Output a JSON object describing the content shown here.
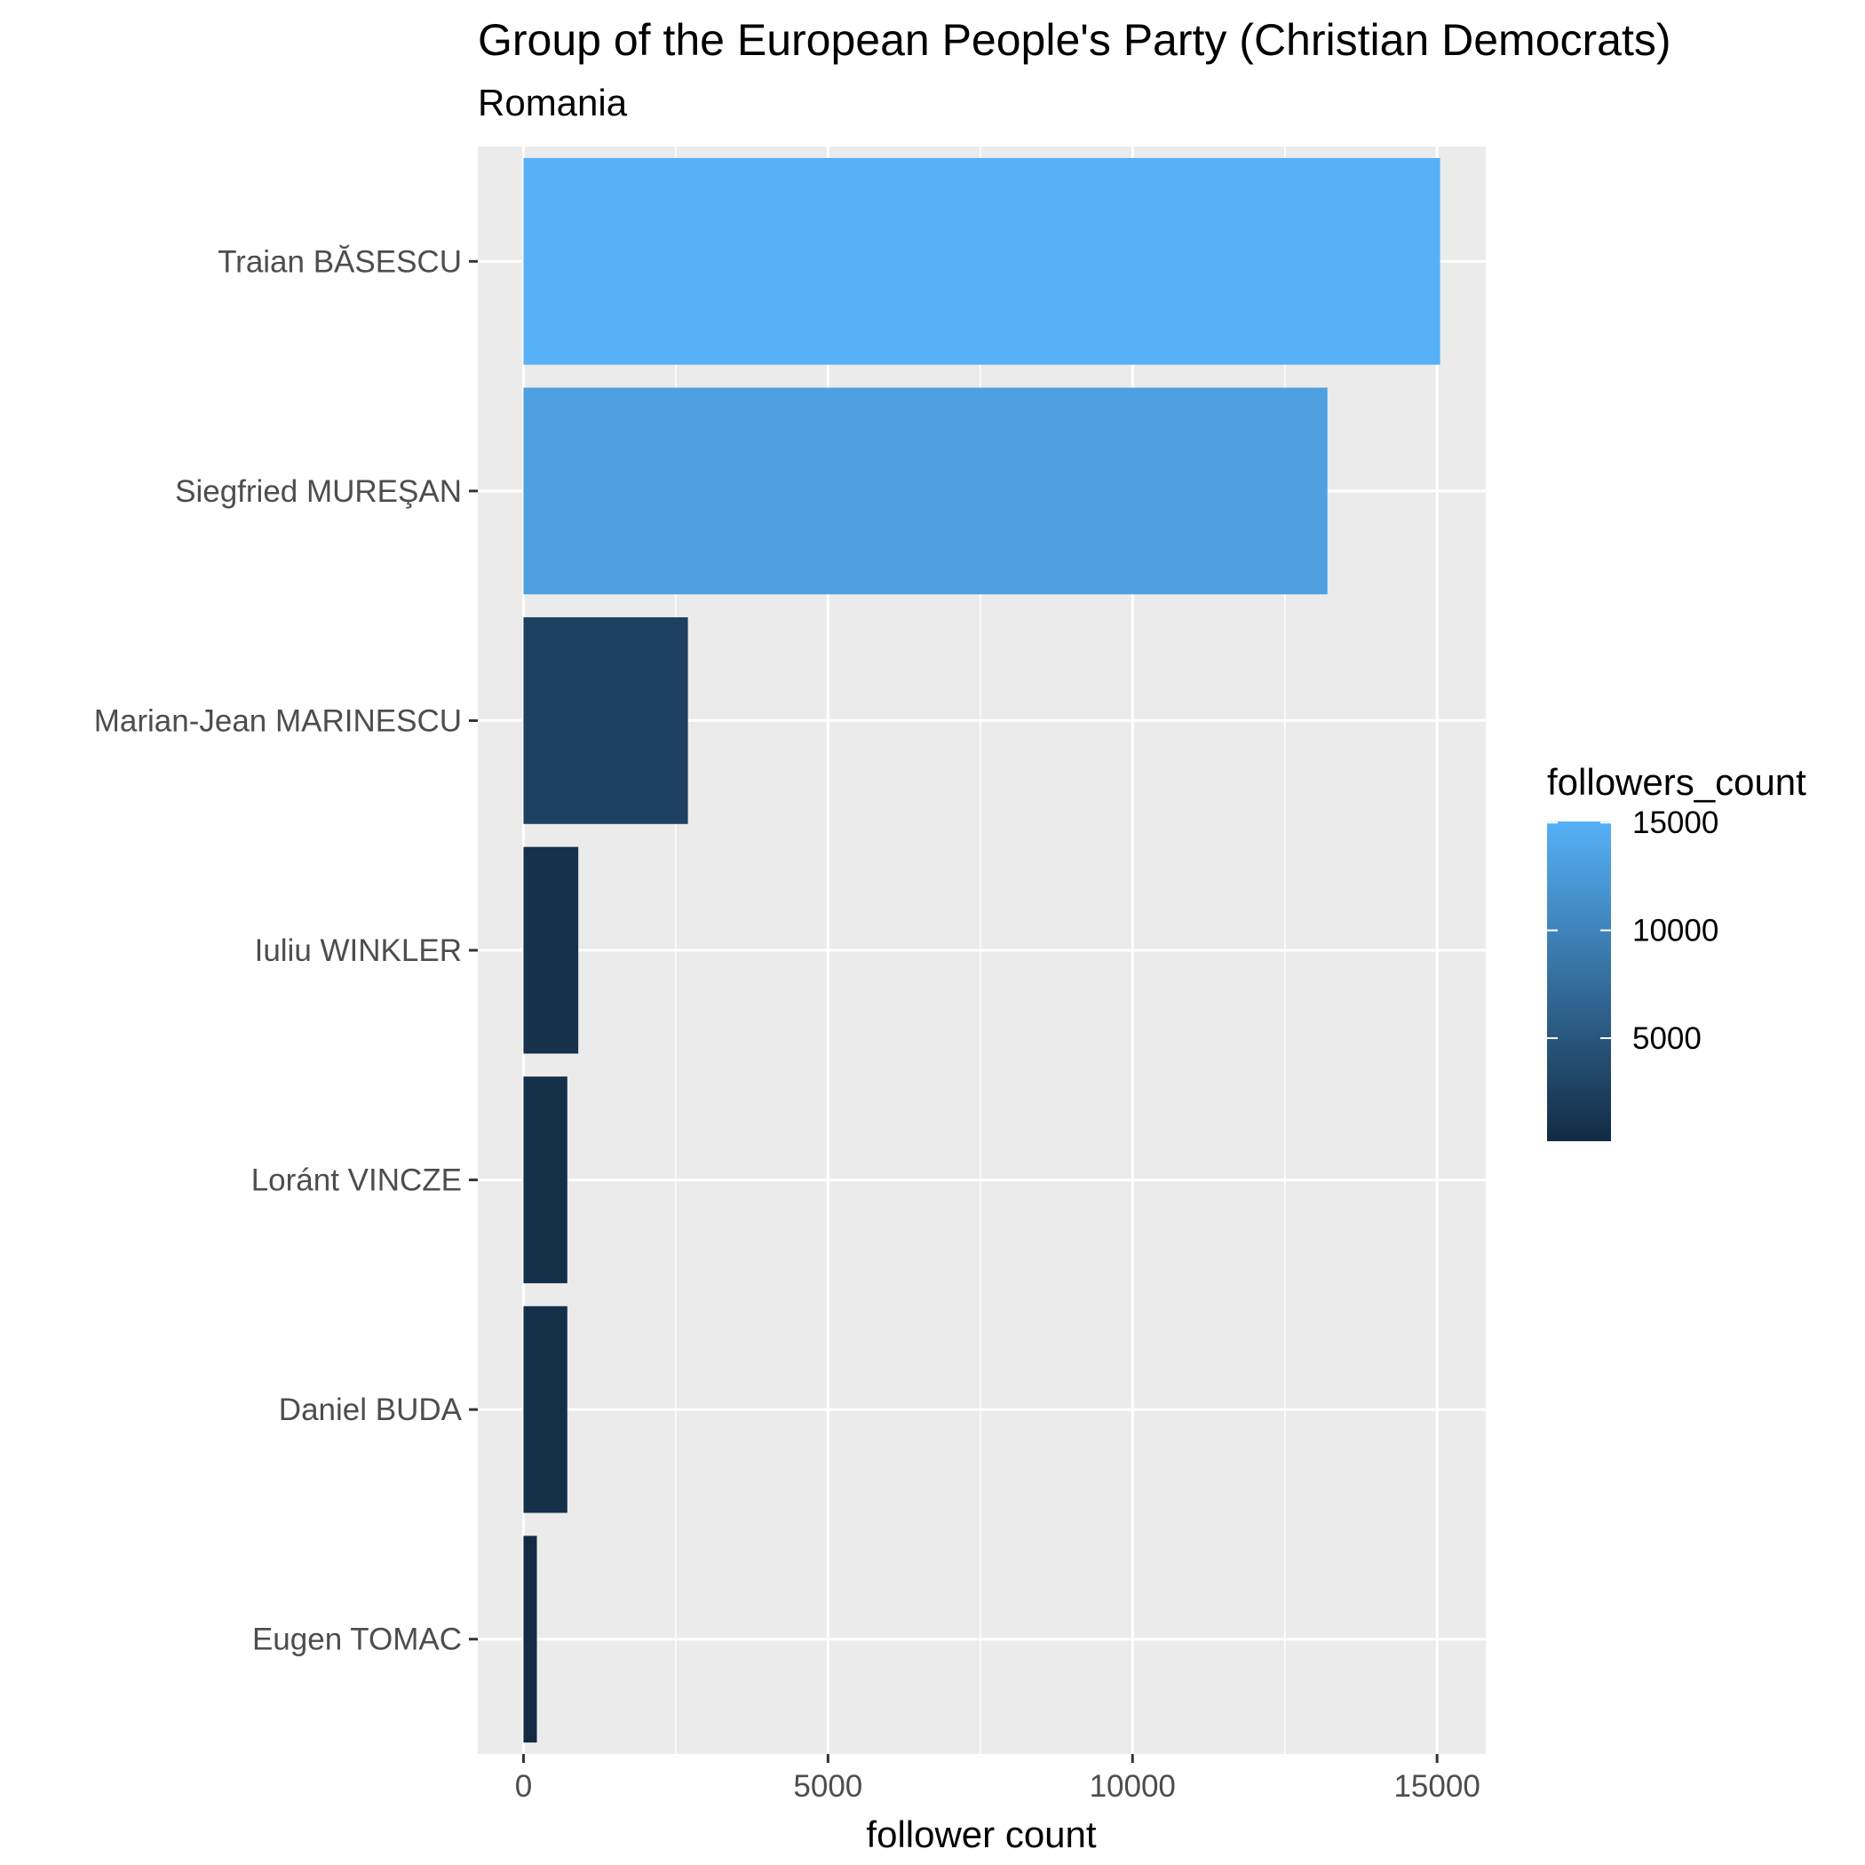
{
  "chart_data": {
    "type": "bar",
    "orientation": "horizontal",
    "title": "Group of the European People's Party (Christian Democrats)",
    "subtitle": "Romania",
    "xlabel": "follower count",
    "ylabel": "",
    "categories": [
      "Traian BĂSESCU",
      "Siegfried MUREŞAN",
      "Marian-Jean MARINESCU",
      "Iuliu WINKLER",
      "Loránt VINCZE",
      "Daniel BUDA",
      "Eugen TOMAC"
    ],
    "values": [
      15050,
      13200,
      2700,
      900,
      720,
      720,
      220
    ],
    "xlim": [
      -750,
      15800
    ],
    "xticks": [
      0,
      5000,
      10000,
      15000
    ],
    "xtick_labels": [
      "0",
      "5000",
      "10000",
      "15000"
    ],
    "grid": true,
    "legend": {
      "title": "followers_count",
      "position": "right",
      "type": "colorbar",
      "range": [
        220,
        15050
      ],
      "ticks": [
        5000,
        10000,
        15000
      ],
      "tick_labels": [
        "5000",
        "10000",
        "15000"
      ],
      "color_low": "#132B43",
      "color_high": "#56B1F7"
    },
    "colors": {
      "panel_background": "#EBEBEB",
      "gridline": "#FFFFFF",
      "tick_text": "#4D4D4D"
    }
  }
}
